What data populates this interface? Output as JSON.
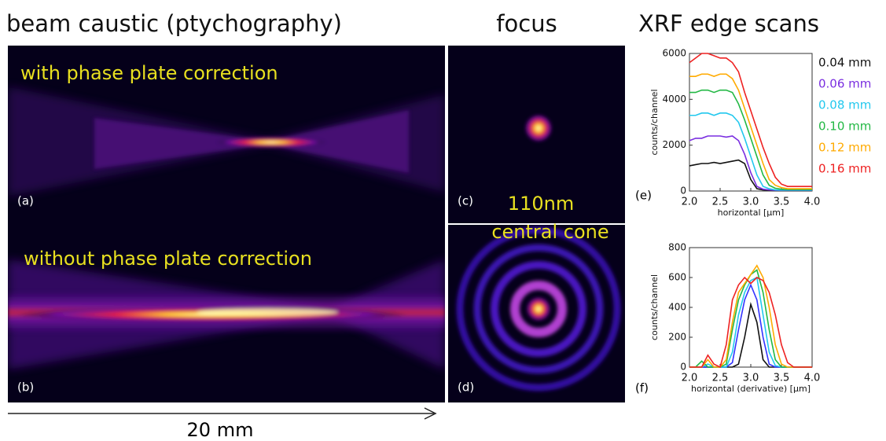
{
  "headings": {
    "caustic": "beam caustic (ptychography)",
    "focus": "focus",
    "xrf": "XRF edge scans"
  },
  "panels": {
    "a_text": "with phase plate correction",
    "a": "(a)",
    "b_text": "without phase plate correction",
    "b": "(b)",
    "c": "(c)",
    "d": "(d)",
    "size": "110nm",
    "cone": "central cone",
    "e": "(e)",
    "f": "(f)"
  },
  "scale_bar": "20 mm",
  "chart_data": [
    {
      "type": "line",
      "y_label": "counts/channel",
      "x_label": "horizontal [μm]",
      "x": [
        2.0,
        2.1,
        2.2,
        2.3,
        2.4,
        2.5,
        2.6,
        2.7,
        2.8,
        2.9,
        3.0,
        3.1,
        3.2,
        3.3,
        3.4,
        3.5,
        3.6,
        3.7,
        3.8,
        3.9,
        4.0
      ],
      "xlim": [
        2.0,
        4.0
      ],
      "ylim": [
        0,
        6000
      ],
      "xticks": [
        {
          "value": 2.0,
          "label": "2.0"
        },
        2.5,
        {
          "value": 3.0,
          "label": "3.0"
        },
        3.5,
        {
          "value": 4.0,
          "label": "4.0"
        }
      ],
      "yticks": [
        0,
        2000,
        4000,
        6000
      ],
      "series": [
        {
          "name": "0.04 mm",
          "color": "#111111",
          "values": [
            1100,
            1150,
            1200,
            1200,
            1250,
            1200,
            1250,
            1300,
            1350,
            1200,
            500,
            100,
            50,
            30,
            20,
            20,
            20,
            20,
            20,
            20,
            20
          ]
        },
        {
          "name": "0.06 mm",
          "color": "#7a2ee0",
          "values": [
            2200,
            2300,
            2300,
            2400,
            2400,
            2400,
            2350,
            2400,
            2200,
            1600,
            800,
            200,
            80,
            50,
            30,
            30,
            30,
            30,
            30,
            30,
            30
          ]
        },
        {
          "name": "0.08 mm",
          "color": "#22c8ee",
          "values": [
            3300,
            3300,
            3400,
            3400,
            3300,
            3400,
            3400,
            3300,
            3000,
            2300,
            1500,
            700,
            200,
            100,
            50,
            40,
            40,
            40,
            40,
            40,
            40
          ]
        },
        {
          "name": "0.10 mm",
          "color": "#22b844",
          "values": [
            4300,
            4300,
            4400,
            4400,
            4300,
            4400,
            4400,
            4300,
            3800,
            3100,
            2300,
            1500,
            700,
            250,
            120,
            80,
            60,
            60,
            60,
            60,
            60
          ]
        },
        {
          "name": "0.12 mm",
          "color": "#ffaa00",
          "values": [
            5000,
            5000,
            5100,
            5100,
            5000,
            5100,
            5100,
            4900,
            4400,
            3600,
            2800,
            2000,
            1200,
            500,
            250,
            150,
            100,
            100,
            100,
            100,
            100
          ]
        },
        {
          "name": "0.16 mm",
          "color": "#ee2222",
          "values": [
            5600,
            5800,
            6000,
            6000,
            5900,
            5800,
            5800,
            5600,
            5200,
            4300,
            3500,
            2700,
            1900,
            1200,
            600,
            300,
            200,
            200,
            200,
            200,
            200
          ]
        }
      ]
    },
    {
      "type": "line",
      "y_label": "counts/channel",
      "x_label": "horizontal (derivative) [μm]",
      "x": [
        2.0,
        2.1,
        2.2,
        2.3,
        2.4,
        2.5,
        2.6,
        2.7,
        2.8,
        2.9,
        3.0,
        3.1,
        3.2,
        3.3,
        3.4,
        3.5,
        3.6,
        3.7,
        3.8,
        3.9,
        4.0
      ],
      "xlim": [
        2.0,
        4.0
      ],
      "ylim": [
        0,
        800
      ],
      "xticks": [
        {
          "value": 2.0,
          "label": "2.0"
        },
        2.5,
        {
          "value": 3.0,
          "label": "3.0"
        },
        3.5,
        {
          "value": 4.0,
          "label": "4.0"
        }
      ],
      "yticks": [
        0,
        200,
        400,
        600,
        800
      ],
      "series": [
        {
          "color": "#111111",
          "values": [
            0,
            0,
            0,
            0,
            0,
            0,
            0,
            0,
            20,
            200,
            420,
            300,
            50,
            0,
            0,
            0,
            0,
            0,
            0,
            0,
            0
          ]
        },
        {
          "color": "#3333ff",
          "values": [
            0,
            0,
            0,
            0,
            0,
            0,
            0,
            30,
            250,
            450,
            550,
            450,
            200,
            20,
            0,
            0,
            0,
            0,
            0,
            0,
            0
          ]
        },
        {
          "color": "#22c8ee",
          "values": [
            0,
            0,
            0,
            20,
            0,
            0,
            0,
            100,
            350,
            500,
            580,
            600,
            350,
            100,
            10,
            0,
            0,
            0,
            0,
            0,
            0
          ]
        },
        {
          "color": "#22b844",
          "values": [
            0,
            0,
            40,
            0,
            0,
            0,
            20,
            250,
            450,
            550,
            620,
            650,
            500,
            250,
            50,
            0,
            0,
            0,
            0,
            0,
            0
          ]
        },
        {
          "color": "#ffaa00",
          "values": [
            0,
            0,
            0,
            50,
            0,
            0,
            50,
            300,
            500,
            560,
            620,
            680,
            600,
            400,
            150,
            20,
            0,
            0,
            0,
            0,
            0
          ]
        },
        {
          "color": "#ee2222",
          "values": [
            0,
            0,
            0,
            80,
            20,
            0,
            150,
            450,
            550,
            600,
            560,
            600,
            580,
            500,
            350,
            150,
            30,
            0,
            0,
            0,
            0
          ]
        }
      ]
    }
  ]
}
